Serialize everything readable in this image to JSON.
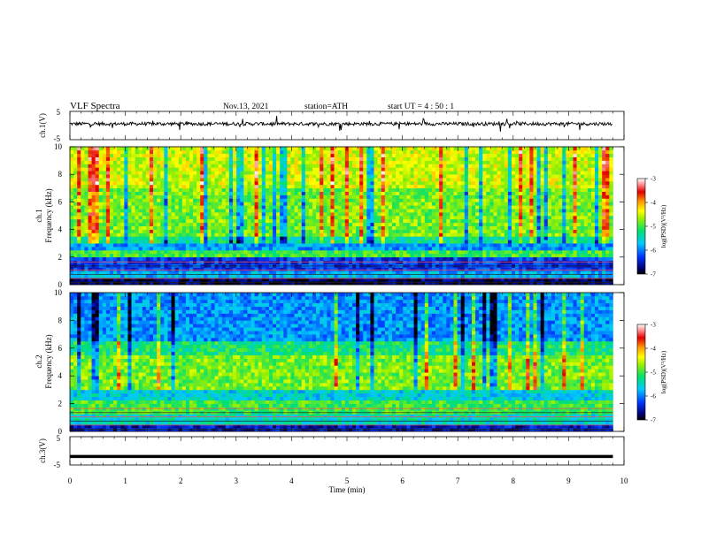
{
  "header": {
    "title": "VLF  Spectra",
    "date": "Nov.13, 2021",
    "station": "station=ATH",
    "start": "start  UT  =   4  : 50 : 1"
  },
  "chart_data": [
    {
      "type": "line",
      "panel": "ch1-waveform",
      "ylabel": "ch.1(V)",
      "yticks": [
        "5",
        "-5"
      ],
      "ylim": [
        -5,
        5
      ],
      "x_range_min": [
        0,
        9.8
      ],
      "approx_level_v": 0.6,
      "noise_amplitude_v": 1.0
    },
    {
      "type": "heatmap",
      "panel": "ch1-spectrogram",
      "ylabel": "ch.1\nFrequency (kHz)",
      "yticks": [
        "0",
        "2",
        "4",
        "6",
        "8",
        "10"
      ],
      "ylim_khz": [
        0,
        10
      ],
      "x_range_min": [
        0,
        9.8
      ],
      "bands": [
        {
          "from_khz": 0,
          "to_khz": 0.5,
          "log_psd": -6.8
        },
        {
          "from_khz": 0.5,
          "to_khz": 1.1,
          "log_psd": -5.8
        },
        {
          "from_khz": 1.1,
          "to_khz": 2.0,
          "log_psd": -6.3
        },
        {
          "from_khz": 2.0,
          "to_khz": 2.4,
          "log_psd": -5.0
        },
        {
          "from_khz": 2.4,
          "to_khz": 3.0,
          "log_psd": -5.9
        },
        {
          "from_khz": 3.0,
          "to_khz": 3.6,
          "log_psd": -5.3
        },
        {
          "from_khz": 3.6,
          "to_khz": 7.0,
          "log_psd": -4.8
        },
        {
          "from_khz": 7.0,
          "to_khz": 10.0,
          "log_psd": -4.5
        }
      ]
    },
    {
      "type": "heatmap",
      "panel": "ch2-spectrogram",
      "ylabel": "ch.2\nFrequency (kHz)",
      "yticks": [
        "0",
        "2",
        "4",
        "6",
        "8",
        "10"
      ],
      "ylim_khz": [
        0,
        10
      ],
      "x_range_min": [
        0,
        9.8
      ],
      "bands": [
        {
          "from_khz": 0,
          "to_khz": 0.4,
          "log_psd": -6.5
        },
        {
          "from_khz": 0.4,
          "to_khz": 1.2,
          "log_psd": -5.5
        },
        {
          "from_khz": 1.2,
          "to_khz": 2.2,
          "log_psd": -5.0
        },
        {
          "from_khz": 2.2,
          "to_khz": 3.0,
          "log_psd": -5.6
        },
        {
          "from_khz": 3.0,
          "to_khz": 5.5,
          "log_psd": -4.8
        },
        {
          "from_khz": 5.5,
          "to_khz": 6.5,
          "log_psd": -5.2
        },
        {
          "from_khz": 6.5,
          "to_khz": 10.0,
          "log_psd": -5.9
        }
      ]
    },
    {
      "type": "line",
      "panel": "ch3-waveform",
      "ylabel": "ch.3(V)",
      "yticks": [
        "5",
        "-5"
      ],
      "ylim": [
        -5,
        5
      ],
      "x_range_min": [
        0,
        9.8
      ],
      "approx_level_v": -2.0
    }
  ],
  "colorbar": {
    "label": "log(PSD)(V²/Hz)",
    "ticks": [
      "-3",
      "-4",
      "-5",
      "-6",
      "-7"
    ],
    "range": [
      -7,
      -3
    ]
  },
  "xaxis": {
    "label": "Time  (min)",
    "ticks": [
      "0",
      "1",
      "2",
      "3",
      "4",
      "5",
      "6",
      "7",
      "8",
      "9",
      "10"
    ],
    "range": [
      0,
      10
    ]
  }
}
